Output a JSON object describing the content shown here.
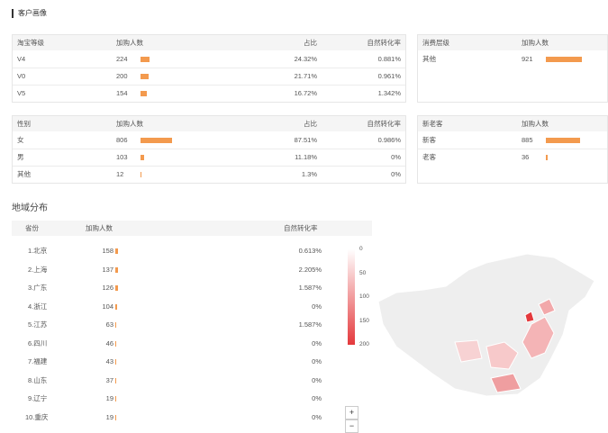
{
  "header": {
    "title": "客户画像"
  },
  "tables": [
    {
      "columns": [
        "淘宝等级",
        "加购人数",
        "占比",
        "自然转化率"
      ],
      "rows": [
        [
          "V4",
          224,
          "24.32%",
          "0.881%"
        ],
        [
          "V0",
          200,
          "21.71%",
          "0.961%"
        ],
        [
          "V5",
          154,
          "16.72%",
          "1.342%"
        ]
      ]
    },
    {
      "columns": [
        "消费层级",
        "加购人数"
      ],
      "rows": [
        [
          "其他",
          921
        ]
      ]
    },
    {
      "columns": [
        "性别",
        "加购人数",
        "占比",
        "自然转化率"
      ],
      "rows": [
        [
          "女",
          806,
          "87.51%",
          "0.986%"
        ],
        [
          "男",
          103,
          "11.18%",
          "0%"
        ],
        [
          "其他",
          12,
          "1.3%",
          "0%"
        ]
      ]
    },
    {
      "columns": [
        "新老客",
        "加购人数"
      ],
      "rows": [
        [
          "新客",
          885
        ],
        [
          "老客",
          36
        ]
      ]
    }
  ],
  "region": {
    "title": "地域分布",
    "columns": [
      "省份",
      "加购人数",
      "自然转化率"
    ],
    "rows": [
      [
        "1.北京",
        158,
        "0.613%"
      ],
      [
        "2.上海",
        137,
        "2.205%"
      ],
      [
        "3.广东",
        126,
        "1.587%"
      ],
      [
        "4.浙江",
        104,
        "0%"
      ],
      [
        "5.江苏",
        63,
        "1.587%"
      ],
      [
        "6.四川",
        46,
        "0%"
      ],
      [
        "7.福建",
        43,
        "0%"
      ],
      [
        "8.山东",
        37,
        "0%"
      ],
      [
        "9.辽宁",
        19,
        "0%"
      ],
      [
        "10.重庆",
        19,
        "0%"
      ]
    ]
  },
  "map": {
    "legend_ticks": [
      0,
      50,
      100,
      150,
      200
    ],
    "zoom_in": "+",
    "zoom_out": "−"
  }
}
